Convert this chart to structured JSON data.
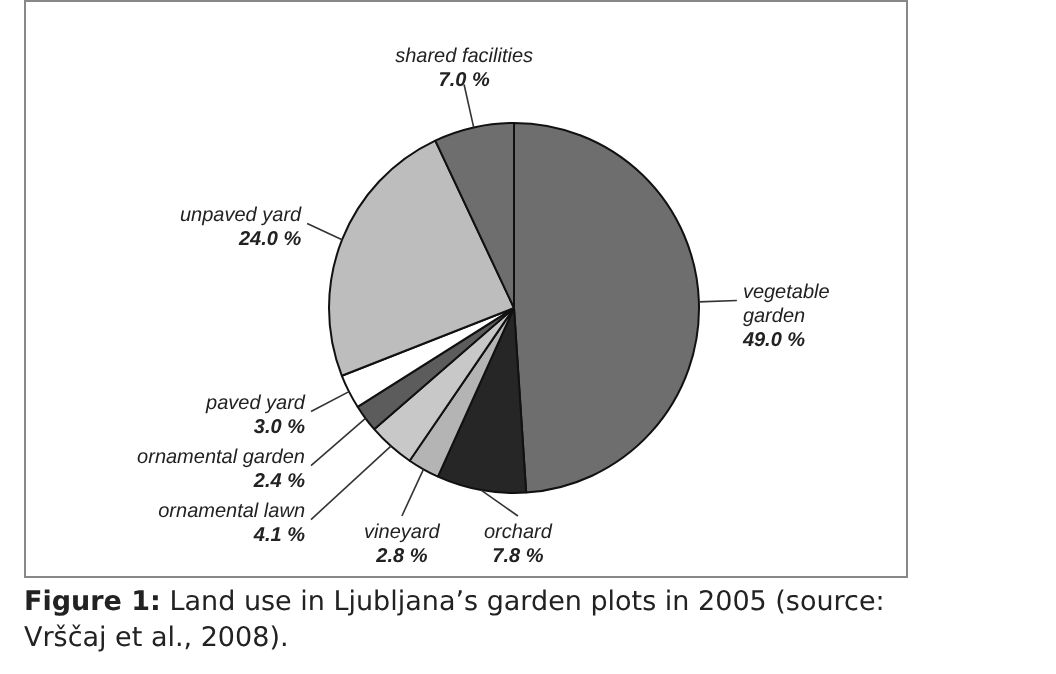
{
  "chart_data": {
    "type": "pie",
    "categories": [
      "vegetable garden",
      "orchard",
      "vineyard",
      "ornamental lawn",
      "ornamental garden",
      "paved yard",
      "unpaved yard",
      "shared facilities"
    ],
    "values": [
      49.0,
      7.8,
      2.8,
      4.1,
      2.4,
      3.0,
      24.0,
      7.0
    ],
    "value_labels": [
      "49.0 %",
      "7.8 %",
      "2.8 %",
      "4.1 %",
      "2.4 %",
      "3.0 %",
      "24.0 %",
      "7.0 %"
    ],
    "colors": [
      "#6e6e6e",
      "#262626",
      "#b4b4b4",
      "#c8c8c8",
      "#5c5c5c",
      "#ffffff",
      "#bdbdbd",
      "#6e6e6e"
    ],
    "legend": false,
    "annotations": [
      "Figure 1: Land use in Ljubljana’s garden plots in 2005 (source: Vrščaj et al., 2008)."
    ]
  }
}
